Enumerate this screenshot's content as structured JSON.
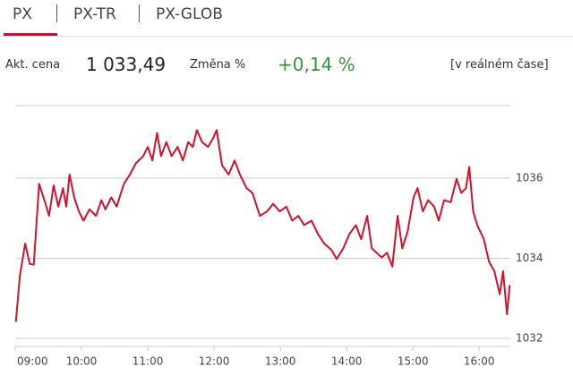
{
  "tabs": [
    "PX",
    "PX-TR",
    "PX-GLOB"
  ],
  "quote": {
    "price_label": "Akt. cena",
    "price": "1 033,49",
    "change_label": "Změna %",
    "change": "+0,14 %",
    "note": "[v reálném čase]"
  },
  "chart_data": {
    "type": "line",
    "color": "#d0142c",
    "grid": true,
    "xlim": [
      9,
      16.47
    ],
    "ylim": [
      1031.8,
      1037.9
    ],
    "xticks": [
      {
        "value": 9,
        "label": "09:00"
      },
      {
        "value": 10,
        "label": "10:00"
      },
      {
        "value": 11,
        "label": "11:00"
      },
      {
        "value": 12,
        "label": "12:00"
      },
      {
        "value": 13,
        "label": "13:00"
      },
      {
        "value": 14,
        "label": "14:00"
      },
      {
        "value": 15,
        "label": "15:00"
      },
      {
        "value": 16,
        "label": "16:00"
      }
    ],
    "yticks": [
      1032,
      1034,
      1036
    ],
    "x": [
      9.01,
      9.07,
      9.15,
      9.22,
      9.28,
      9.36,
      9.45,
      9.51,
      9.58,
      9.65,
      9.72,
      9.77,
      9.82,
      9.89,
      9.96,
      10.03,
      10.12,
      10.22,
      10.3,
      10.36,
      10.45,
      10.53,
      10.64,
      10.73,
      10.82,
      10.93,
      11.0,
      11.07,
      11.14,
      11.2,
      11.28,
      11.36,
      11.45,
      11.53,
      11.61,
      11.68,
      11.74,
      11.82,
      11.91,
      11.99,
      12.04,
      12.12,
      12.22,
      12.31,
      12.39,
      12.49,
      12.58,
      12.69,
      12.8,
      12.89,
      12.99,
      13.09,
      13.18,
      13.27,
      13.36,
      13.47,
      13.57,
      13.66,
      13.77,
      13.85,
      13.95,
      14.04,
      14.14,
      14.22,
      14.31,
      14.38,
      14.45,
      14.53,
      14.61,
      14.69,
      14.77,
      14.84,
      14.92,
      15.01,
      15.07,
      15.15,
      15.23,
      15.32,
      15.39,
      15.47,
      15.57,
      15.66,
      15.73,
      15.8,
      15.85,
      15.91,
      15.97,
      16.07,
      16.15,
      16.23,
      16.31,
      16.36,
      16.42,
      16.46
    ],
    "values": [
      1032.41,
      1033.56,
      1034.37,
      1033.86,
      1033.84,
      1035.86,
      1035.4,
      1035.06,
      1035.82,
      1035.29,
      1035.75,
      1035.29,
      1036.09,
      1035.52,
      1035.17,
      1034.94,
      1035.22,
      1035.06,
      1035.45,
      1035.22,
      1035.52,
      1035.29,
      1035.86,
      1036.09,
      1036.37,
      1036.55,
      1036.78,
      1036.44,
      1037.13,
      1036.55,
      1036.9,
      1036.55,
      1036.78,
      1036.44,
      1036.9,
      1036.78,
      1037.2,
      1036.9,
      1036.78,
      1037.01,
      1037.2,
      1036.32,
      1036.09,
      1036.44,
      1036.09,
      1035.75,
      1035.63,
      1035.06,
      1035.17,
      1035.36,
      1035.17,
      1035.29,
      1034.94,
      1035.06,
      1034.83,
      1034.94,
      1034.6,
      1034.37,
      1034.21,
      1033.98,
      1034.25,
      1034.6,
      1034.83,
      1034.48,
      1035.06,
      1034.25,
      1034.14,
      1034.02,
      1034.14,
      1033.79,
      1035.06,
      1034.25,
      1034.67,
      1035.52,
      1035.75,
      1035.17,
      1035.45,
      1035.29,
      1034.94,
      1035.45,
      1035.4,
      1035.98,
      1035.63,
      1035.75,
      1036.28,
      1035.17,
      1034.83,
      1034.48,
      1033.91,
      1033.68,
      1033.1,
      1033.68,
      1032.6,
      1033.33
    ]
  }
}
